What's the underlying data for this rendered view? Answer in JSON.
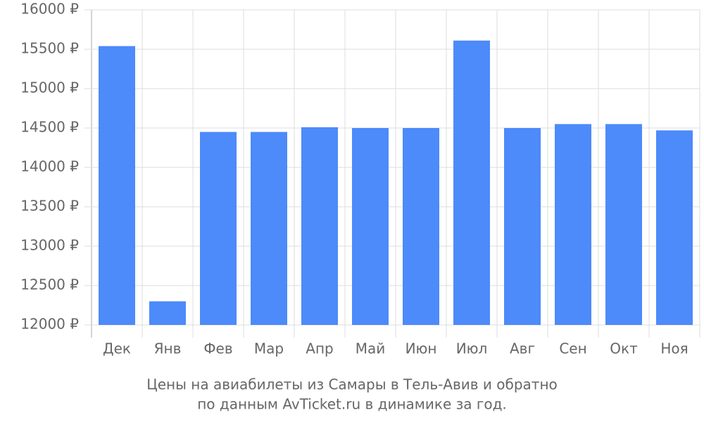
{
  "chart_data": {
    "type": "bar",
    "title": [
      "Цены на авиабилеты из Самары в Тель-Авив и обратно",
      "по данным AvTicket.ru в динамике за год."
    ],
    "categories": [
      "Дек",
      "Янв",
      "Фев",
      "Мар",
      "Апр",
      "Май",
      "Июн",
      "Июл",
      "Авг",
      "Сен",
      "Окт",
      "Ноя"
    ],
    "values": [
      15540,
      12300,
      14450,
      14450,
      14510,
      14500,
      14500,
      15610,
      14500,
      14550,
      14550,
      14470
    ],
    "color": "#4d8afa",
    "ylim": [
      12000,
      16000
    ],
    "yticks": [
      {
        "value": 12000,
        "label": "12000 ₽"
      },
      {
        "value": 12500,
        "label": "12500 ₽"
      },
      {
        "value": 13000,
        "label": "13000 ₽"
      },
      {
        "value": 13500,
        "label": "13500 ₽"
      },
      {
        "value": 14000,
        "label": "14000 ₽"
      },
      {
        "value": 14500,
        "label": "14500 ₽"
      },
      {
        "value": 15000,
        "label": "15000 ₽"
      },
      {
        "value": 15500,
        "label": "15500 ₽"
      },
      {
        "value": 16000,
        "label": "16000 ₽"
      }
    ],
    "grid": true
  }
}
